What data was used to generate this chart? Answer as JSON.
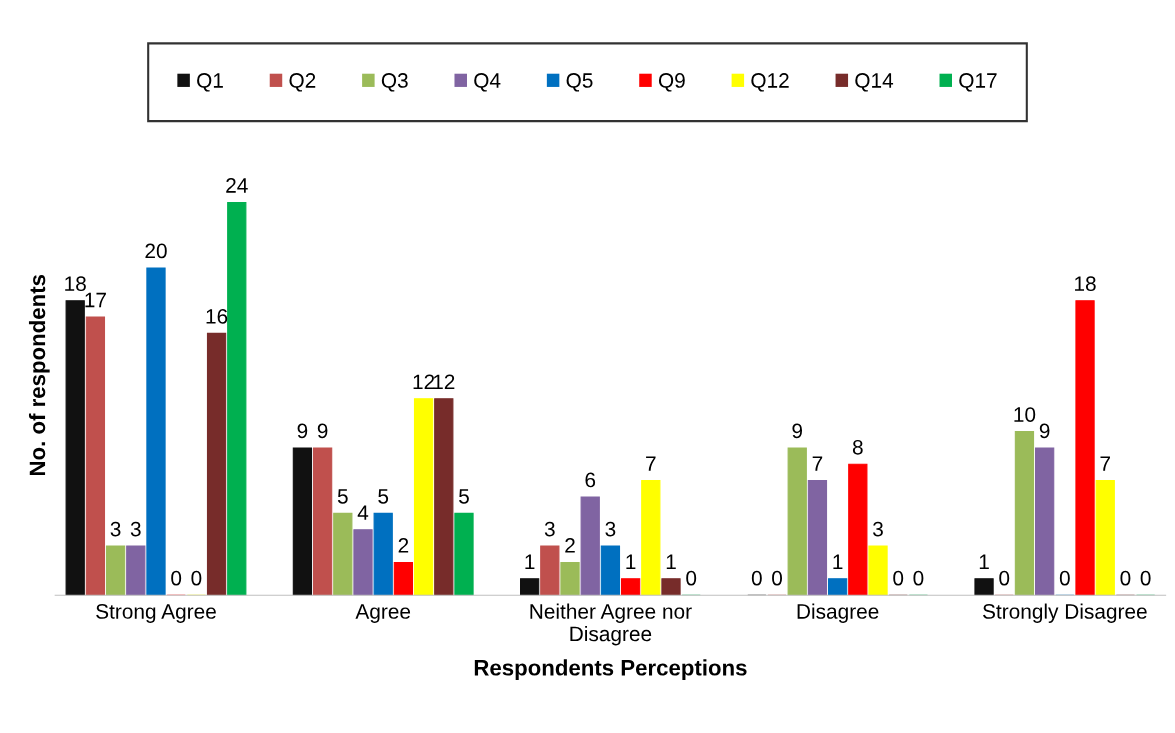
{
  "chart_data": {
    "type": "bar",
    "xlabel": "Respondents Perceptions",
    "ylabel": "No. of respondents",
    "categories": [
      "Strong Agree",
      "Agree",
      "Neither Agree nor\nDisagree",
      "Disagree",
      "Strongly Disagree"
    ],
    "series": [
      {
        "name": "Q1",
        "color": "#111111",
        "values": [
          18,
          9,
          1,
          0,
          1
        ]
      },
      {
        "name": "Q2",
        "color": "#c0504d",
        "values": [
          17,
          9,
          3,
          0,
          0
        ]
      },
      {
        "name": "Q3",
        "color": "#9bbb59",
        "values": [
          3,
          5,
          2,
          9,
          10
        ]
      },
      {
        "name": "Q4",
        "color": "#8064a2",
        "values": [
          3,
          4,
          6,
          7,
          9
        ]
      },
      {
        "name": "Q5",
        "color": "#0070c0",
        "values": [
          20,
          5,
          3,
          1,
          0
        ]
      },
      {
        "name": "Q9",
        "color": "#ff0000",
        "values": [
          0,
          2,
          1,
          8,
          18
        ]
      },
      {
        "name": "Q12",
        "color": "#ffff00",
        "values": [
          0,
          12,
          7,
          3,
          7
        ]
      },
      {
        "name": "Q14",
        "color": "#772c2a",
        "values": [
          16,
          12,
          1,
          0,
          0
        ]
      },
      {
        "name": "Q17",
        "color": "#00b050",
        "values": [
          24,
          5,
          0,
          0,
          0
        ]
      }
    ],
    "data_labels": true,
    "legend": "top",
    "grid": false,
    "tick_labels": "x"
  }
}
